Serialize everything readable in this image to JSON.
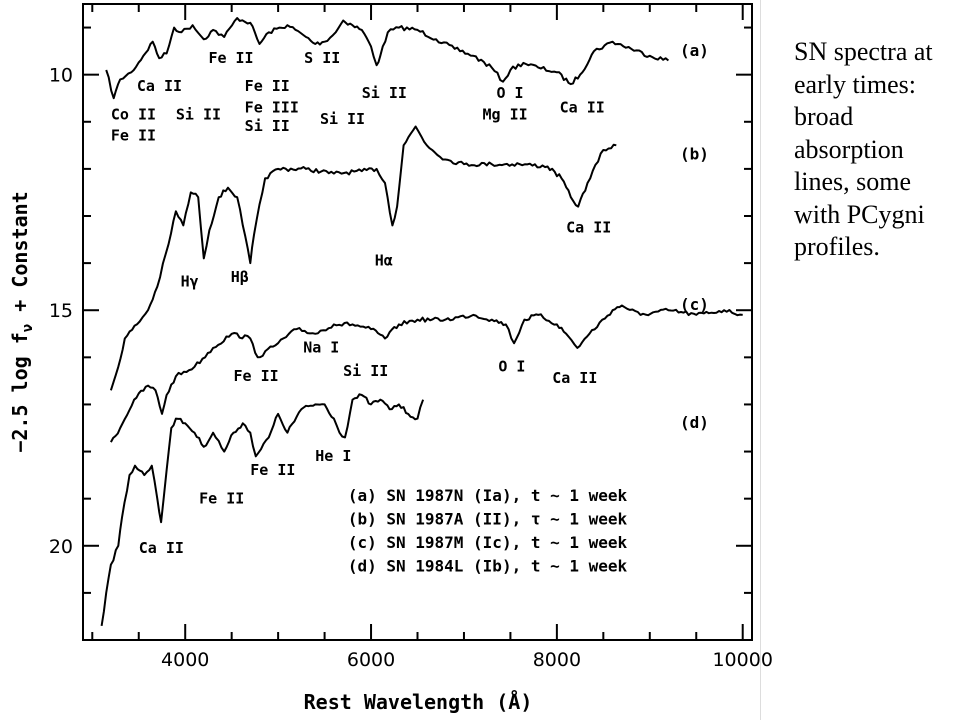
{
  "side_note": "SN spectra at early times: broad absorption lines, some with PCygni profiles.",
  "chart_data": {
    "type": "line",
    "title": "",
    "xlabel": "Rest Wavelength (Å)",
    "ylabel": "−2.5 log f",
    "ylabel_sub": "ν",
    "ylabel_tail": " + Constant",
    "xlim": [
      2900,
      10100
    ],
    "ylim": [
      8.5,
      22.0
    ],
    "y_inverted": true,
    "grid": false,
    "x_ticks": [
      4000,
      6000,
      8000,
      10000
    ],
    "x_tick_labels": [
      "4000",
      "6000",
      "8000",
      "10000"
    ],
    "y_ticks": [
      10,
      15,
      20
    ],
    "y_tick_labels": [
      "10",
      "15",
      "20"
    ],
    "x_minor_step": 500,
    "y_minor_step": 1,
    "series": [
      {
        "tag": "(a)",
        "tag_y": 9.6,
        "x": [
          3150,
          3230,
          3300,
          3420,
          3550,
          3650,
          3720,
          3800,
          3880,
          3960,
          4080,
          4200,
          4300,
          4420,
          4560,
          4700,
          4800,
          4900,
          5100,
          5300,
          5400,
          5500,
          5620,
          5700,
          5800,
          5900,
          6000,
          6060,
          6100,
          6180,
          6300,
          6500,
          6700,
          6900,
          7100,
          7300,
          7420,
          7500,
          7640,
          7800,
          8000,
          8150,
          8250,
          8400,
          8600,
          8800,
          9000,
          9200
        ],
        "y": [
          9.9,
          10.5,
          10.1,
          9.95,
          9.6,
          9.3,
          9.65,
          9.55,
          9.0,
          9.1,
          8.95,
          9.25,
          9.05,
          9.2,
          8.8,
          8.9,
          9.35,
          9.1,
          8.95,
          9.2,
          9.35,
          9.3,
          9.1,
          8.85,
          8.95,
          9.05,
          9.4,
          9.8,
          9.6,
          9.1,
          9.0,
          9.05,
          9.25,
          9.45,
          9.6,
          9.85,
          10.15,
          9.9,
          9.75,
          9.85,
          9.95,
          10.2,
          10.0,
          9.5,
          9.3,
          9.45,
          9.6,
          9.7
        ]
      },
      {
        "tag": "(b)",
        "tag_y": 11.8,
        "x": [
          3200,
          3280,
          3350,
          3480,
          3600,
          3700,
          3820,
          3900,
          3980,
          4060,
          4140,
          4200,
          4260,
          4360,
          4460,
          4560,
          4620,
          4700,
          4740,
          4860,
          5000,
          5300,
          5600,
          5900,
          6060,
          6150,
          6230,
          6280,
          6350,
          6480,
          6600,
          6800,
          7000,
          7300,
          7600,
          7900,
          8050,
          8150,
          8230,
          8330,
          8500,
          8640
        ],
        "y": [
          16.7,
          16.2,
          15.6,
          15.3,
          15.0,
          14.5,
          13.6,
          12.9,
          13.2,
          12.5,
          12.6,
          13.9,
          13.3,
          12.6,
          12.4,
          12.6,
          13.2,
          14.0,
          13.4,
          12.2,
          12.0,
          12.0,
          12.1,
          12.05,
          12.0,
          12.3,
          13.2,
          12.8,
          11.5,
          11.1,
          11.5,
          11.8,
          11.9,
          11.9,
          11.9,
          11.95,
          12.2,
          12.6,
          12.8,
          12.3,
          11.6,
          11.5
        ]
      },
      {
        "tag": "(c)",
        "tag_y": 15.0,
        "x": [
          3200,
          3300,
          3450,
          3600,
          3680,
          3750,
          3800,
          3900,
          4100,
          4300,
          4500,
          4700,
          4780,
          5000,
          5200,
          5400,
          5600,
          5800,
          6000,
          6150,
          6300,
          6500,
          6800,
          7100,
          7300,
          7450,
          7540,
          7650,
          7800,
          8000,
          8100,
          8220,
          8350,
          8600,
          8700,
          8900,
          9200,
          9500,
          9800,
          10000
        ],
        "y": [
          17.8,
          17.5,
          16.9,
          16.6,
          16.7,
          17.2,
          16.8,
          16.4,
          16.2,
          15.8,
          15.5,
          15.6,
          16.0,
          15.7,
          15.4,
          15.5,
          15.3,
          15.3,
          15.4,
          15.6,
          15.3,
          15.2,
          15.2,
          15.1,
          15.2,
          15.3,
          15.7,
          15.2,
          15.1,
          15.3,
          15.5,
          15.8,
          15.5,
          15.0,
          14.9,
          15.1,
          15.0,
          15.1,
          15.0,
          15.1
        ]
      },
      {
        "tag": "(d)",
        "tag_y": 17.5,
        "x": [
          3100,
          3150,
          3200,
          3280,
          3320,
          3400,
          3460,
          3560,
          3640,
          3700,
          3740,
          3800,
          3850,
          3900,
          4000,
          4100,
          4200,
          4300,
          4420,
          4520,
          4620,
          4700,
          4760,
          4900,
          5000,
          5100,
          5250,
          5400,
          5500,
          5600,
          5660,
          5720,
          5800,
          5900,
          6000,
          6100,
          6200,
          6300,
          6400,
          6500,
          6560
        ],
        "y": [
          21.7,
          21.0,
          20.4,
          20.0,
          19.4,
          18.5,
          18.3,
          18.5,
          18.3,
          19.0,
          19.5,
          18.4,
          17.5,
          17.3,
          17.4,
          17.6,
          17.9,
          17.6,
          18.0,
          17.6,
          17.4,
          17.6,
          18.1,
          17.7,
          17.2,
          17.6,
          17.1,
          17.0,
          17.0,
          17.3,
          17.6,
          17.7,
          16.9,
          16.8,
          17.0,
          16.9,
          17.1,
          17.0,
          17.2,
          17.3,
          16.9
        ]
      }
    ],
    "annotations": [
      {
        "text": "Co II",
        "x": 3200,
        "y": 10.95
      },
      {
        "text": "Fe II",
        "x": 3200,
        "y": 11.4
      },
      {
        "text": "Ca II",
        "x": 3480,
        "y": 10.35
      },
      {
        "text": "Si II",
        "x": 3900,
        "y": 10.95
      },
      {
        "text": "Fe II",
        "x": 4250,
        "y": 9.75
      },
      {
        "text": "Fe II",
        "x": 4640,
        "y": 10.35
      },
      {
        "text": "Fe III",
        "x": 4640,
        "y": 10.8
      },
      {
        "text": "Si II",
        "x": 4640,
        "y": 11.2
      },
      {
        "text": "S II",
        "x": 5280,
        "y": 9.75
      },
      {
        "text": "Si II",
        "x": 5450,
        "y": 11.05
      },
      {
        "text": "Si II",
        "x": 5900,
        "y": 10.5
      },
      {
        "text": "O I",
        "x": 7350,
        "y": 10.5
      },
      {
        "text": "Mg II",
        "x": 7200,
        "y": 10.95
      },
      {
        "text": "Ca II",
        "x": 8030,
        "y": 10.8
      },
      {
        "text": "Ca II",
        "x": 8100,
        "y": 13.35
      },
      {
        "text": "Hγ",
        "x": 3950,
        "y": 14.5
      },
      {
        "text": "Hβ",
        "x": 4490,
        "y": 14.4
      },
      {
        "text": "Hα",
        "x": 6040,
        "y": 14.05
      },
      {
        "text": "Na I",
        "x": 5270,
        "y": 15.9
      },
      {
        "text": "Si II",
        "x": 5700,
        "y": 16.4
      },
      {
        "text": "Fe II",
        "x": 4520,
        "y": 16.5
      },
      {
        "text": "O I",
        "x": 7370,
        "y": 16.3
      },
      {
        "text": "Ca II",
        "x": 7950,
        "y": 16.55
      },
      {
        "text": "Fe II",
        "x": 4700,
        "y": 18.5
      },
      {
        "text": "He I",
        "x": 5400,
        "y": 18.2
      },
      {
        "text": "Fe II",
        "x": 4150,
        "y": 19.1
      },
      {
        "text": "Ca II",
        "x": 3500,
        "y": 20.15
      }
    ],
    "legend_lines": [
      "(a) SN 1987N (Ia), t ∼ 1 week",
      "(b) SN 1987A (II), τ ∼ 1 week",
      "(c) SN 1987M (Ic), t ∼ 1 week",
      "(d) SN 1984L (Ib), t ∼ 1 week"
    ],
    "legend_x": 5750,
    "legend_y": [
      19.05,
      19.55,
      20.05,
      20.55
    ]
  }
}
